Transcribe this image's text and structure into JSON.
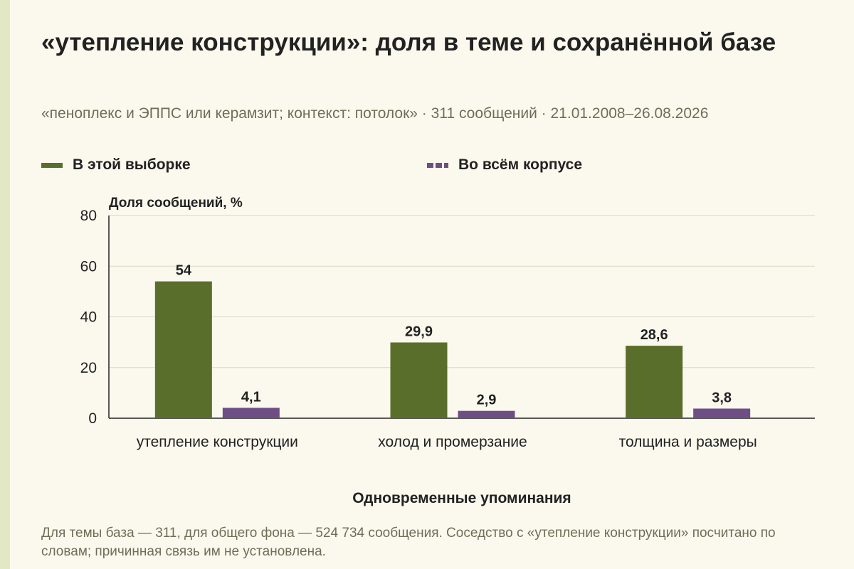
{
  "title": "«утепление конструкции»: доля в теме и сохранённой базе",
  "subtitle": "«пеноплекс и ЭППС или керамзит; контекст: потолок» · 311 сообщений · 21.01.2008–26.08.2026",
  "footnote": "Для темы база — 311, для общего фона — 524 734 сообщения. Соседство с «утепление конструкции» посчитано по словам; причинная связь им не установлена.",
  "colors": {
    "sample": "#5a6e2b",
    "corpus": "#6e4f85",
    "background": "#fbf9ee",
    "grid": "#d7d7c4"
  },
  "chart_data": {
    "type": "bar",
    "ylabel": "Доля сообщений, %",
    "xlabel": "Одновременные упоминания",
    "ylim": [
      0,
      80
    ],
    "yticks": [
      0,
      20,
      40,
      60,
      80
    ],
    "grid": true,
    "legend_position": "top",
    "categories": [
      "утепление конструкции",
      "холод и промерзание",
      "толщина и размеры"
    ],
    "series": [
      {
        "name": "В этой выборке",
        "values": [
          54,
          29.9,
          28.6
        ],
        "labels": [
          "54",
          "29,9",
          "28,6"
        ],
        "color": "#5a6e2b",
        "style": "solid"
      },
      {
        "name": "Во всём корпусе",
        "values": [
          4.1,
          2.9,
          3.8
        ],
        "labels": [
          "4,1",
          "2,9",
          "3,8"
        ],
        "color": "#6e4f85",
        "style": "dashed"
      }
    ]
  }
}
